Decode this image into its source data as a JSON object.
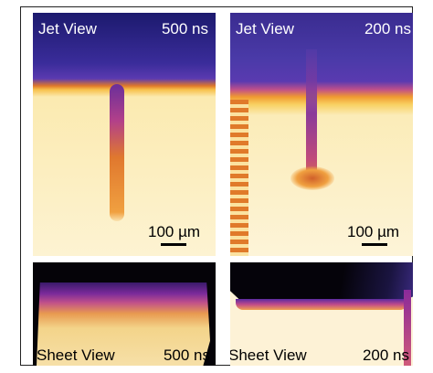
{
  "panels": [
    {
      "view": "Jet View",
      "time": "500 ns",
      "scale": "100 µm"
    },
    {
      "view": "Jet View",
      "time": "200 ns",
      "scale": "100 µm"
    },
    {
      "view": "Sheet View",
      "time": "500 ns"
    },
    {
      "view": "Sheet View",
      "time": "200 ns"
    }
  ]
}
